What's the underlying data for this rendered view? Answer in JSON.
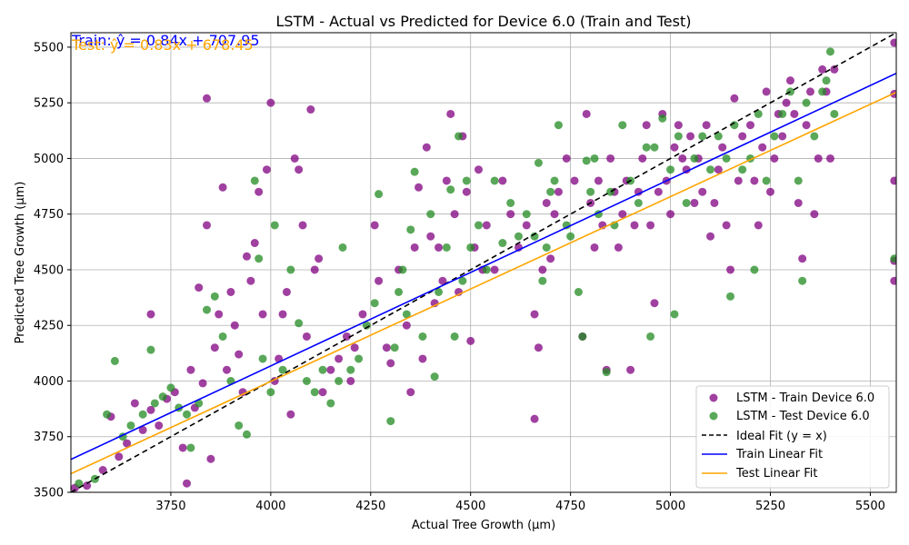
{
  "chart_data": {
    "type": "scatter",
    "title": "LSTM - Actual vs Predicted for Device 6.0 (Train and Test)",
    "xlabel": "Actual Tree Growth (µm)",
    "ylabel": "Predicted Tree Growth (µm)",
    "xlim": [
      3500,
      5565
    ],
    "ylim": [
      3500,
      5565
    ],
    "xticks": [
      "3750",
      "4000",
      "4250",
      "4500",
      "4750",
      "5000",
      "5250",
      "5500"
    ],
    "yticks": [
      "3500",
      "3750",
      "4000",
      "4250",
      "4500",
      "4750",
      "5000",
      "5250",
      "5500"
    ],
    "grid": true,
    "legend_position": "lower-right",
    "series": [
      {
        "name": "LSTM - Train Device 6.0",
        "kind": "scatter",
        "color": "#800080",
        "points": [
          [
            3510,
            3520
          ],
          [
            3540,
            3530
          ],
          [
            3580,
            3600
          ],
          [
            3600,
            3840
          ],
          [
            3620,
            3660
          ],
          [
            3640,
            3720
          ],
          [
            3660,
            3900
          ],
          [
            3680,
            3780
          ],
          [
            3700,
            3870
          ],
          [
            3700,
            4300
          ],
          [
            3720,
            3800
          ],
          [
            3740,
            3920
          ],
          [
            3760,
            3950
          ],
          [
            3780,
            3700
          ],
          [
            3790,
            3540
          ],
          [
            3800,
            4050
          ],
          [
            3810,
            3880
          ],
          [
            3820,
            4420
          ],
          [
            3830,
            3990
          ],
          [
            3840,
            5270
          ],
          [
            3840,
            4700
          ],
          [
            3850,
            3650
          ],
          [
            3860,
            4150
          ],
          [
            3870,
            4300
          ],
          [
            3880,
            4870
          ],
          [
            3890,
            4050
          ],
          [
            3900,
            4400
          ],
          [
            3910,
            4250
          ],
          [
            3920,
            4120
          ],
          [
            3930,
            3950
          ],
          [
            3940,
            4560
          ],
          [
            3950,
            4450
          ],
          [
            3960,
            4620
          ],
          [
            3970,
            4850
          ],
          [
            3980,
            4300
          ],
          [
            3990,
            4950
          ],
          [
            4000,
            5250
          ],
          [
            4010,
            4000
          ],
          [
            4020,
            4100
          ],
          [
            4030,
            4300
          ],
          [
            4040,
            4400
          ],
          [
            4050,
            3850
          ],
          [
            4060,
            5000
          ],
          [
            4070,
            4950
          ],
          [
            4080,
            4700
          ],
          [
            4090,
            4200
          ],
          [
            4100,
            5220
          ],
          [
            4110,
            4500
          ],
          [
            4120,
            4550
          ],
          [
            4130,
            3950
          ],
          [
            4150,
            4050
          ],
          [
            4170,
            4100
          ],
          [
            4190,
            4200
          ],
          [
            4200,
            4000
          ],
          [
            4210,
            4150
          ],
          [
            4230,
            4300
          ],
          [
            4260,
            4700
          ],
          [
            4270,
            4450
          ],
          [
            4290,
            4150
          ],
          [
            4300,
            4080
          ],
          [
            4320,
            4500
          ],
          [
            4340,
            4250
          ],
          [
            4350,
            3950
          ],
          [
            4360,
            4600
          ],
          [
            4370,
            4870
          ],
          [
            4380,
            4100
          ],
          [
            4390,
            5050
          ],
          [
            4400,
            4650
          ],
          [
            4410,
            4350
          ],
          [
            4420,
            4600
          ],
          [
            4430,
            4450
          ],
          [
            4440,
            4900
          ],
          [
            4450,
            5200
          ],
          [
            4460,
            4750
          ],
          [
            4470,
            4400
          ],
          [
            4480,
            5100
          ],
          [
            4490,
            4850
          ],
          [
            4500,
            4180
          ],
          [
            4510,
            4600
          ],
          [
            4520,
            4950
          ],
          [
            4530,
            4500
          ],
          [
            4540,
            4700
          ],
          [
            4560,
            4500
          ],
          [
            4580,
            4900
          ],
          [
            4600,
            4750
          ],
          [
            4620,
            4600
          ],
          [
            4640,
            4700
          ],
          [
            4660,
            3830
          ],
          [
            4660,
            4300
          ],
          [
            4670,
            4150
          ],
          [
            4680,
            4500
          ],
          [
            4690,
            4800
          ],
          [
            4700,
            4550
          ],
          [
            4710,
            4750
          ],
          [
            4720,
            4850
          ],
          [
            4740,
            5000
          ],
          [
            4760,
            4900
          ],
          [
            4780,
            4200
          ],
          [
            4790,
            5200
          ],
          [
            4800,
            4800
          ],
          [
            4810,
            4600
          ],
          [
            4820,
            4900
          ],
          [
            4830,
            4700
          ],
          [
            4840,
            4050
          ],
          [
            4850,
            5000
          ],
          [
            4860,
            4850
          ],
          [
            4870,
            4600
          ],
          [
            4880,
            4750
          ],
          [
            4890,
            4900
          ],
          [
            4900,
            4050
          ],
          [
            4910,
            4700
          ],
          [
            4920,
            4850
          ],
          [
            4930,
            5000
          ],
          [
            4940,
            5150
          ],
          [
            4950,
            4700
          ],
          [
            4960,
            4350
          ],
          [
            4970,
            4850
          ],
          [
            4980,
            5200
          ],
          [
            4990,
            4900
          ],
          [
            5000,
            4750
          ],
          [
            5010,
            5050
          ],
          [
            5020,
            5150
          ],
          [
            5030,
            5000
          ],
          [
            5040,
            4950
          ],
          [
            5050,
            5100
          ],
          [
            5060,
            4800
          ],
          [
            5070,
            5000
          ],
          [
            5080,
            4850
          ],
          [
            5090,
            5150
          ],
          [
            5100,
            4650
          ],
          [
            5110,
            4800
          ],
          [
            5120,
            4950
          ],
          [
            5130,
            5050
          ],
          [
            5140,
            4700
          ],
          [
            5150,
            4500
          ],
          [
            5160,
            5270
          ],
          [
            5170,
            4900
          ],
          [
            5180,
            5100
          ],
          [
            5200,
            5150
          ],
          [
            5210,
            4900
          ],
          [
            5220,
            4700
          ],
          [
            5230,
            5050
          ],
          [
            5240,
            5300
          ],
          [
            5250,
            4850
          ],
          [
            5260,
            5000
          ],
          [
            5270,
            5200
          ],
          [
            5280,
            5100
          ],
          [
            5290,
            5250
          ],
          [
            5300,
            5350
          ],
          [
            5310,
            5200
          ],
          [
            5320,
            4800
          ],
          [
            5330,
            4550
          ],
          [
            5340,
            5150
          ],
          [
            5350,
            5300
          ],
          [
            5360,
            4750
          ],
          [
            5370,
            5000
          ],
          [
            5380,
            5400
          ],
          [
            5390,
            5300
          ],
          [
            5400,
            5000
          ],
          [
            5410,
            5400
          ],
          [
            5560,
            5520
          ],
          [
            5560,
            4540
          ],
          [
            5560,
            4900
          ],
          [
            5560,
            5290
          ],
          [
            5560,
            4450
          ]
        ]
      },
      {
        "name": "LSTM - Test Device 6.0",
        "kind": "scatter",
        "color": "#228B22",
        "points": [
          [
            3520,
            3540
          ],
          [
            3560,
            3560
          ],
          [
            3590,
            3850
          ],
          [
            3610,
            4090
          ],
          [
            3630,
            3750
          ],
          [
            3650,
            3800
          ],
          [
            3680,
            3850
          ],
          [
            3700,
            4140
          ],
          [
            3710,
            3900
          ],
          [
            3730,
            3930
          ],
          [
            3750,
            3970
          ],
          [
            3770,
            3880
          ],
          [
            3790,
            3850
          ],
          [
            3800,
            3700
          ],
          [
            3820,
            3900
          ],
          [
            3840,
            4320
          ],
          [
            3860,
            4380
          ],
          [
            3880,
            4200
          ],
          [
            3900,
            4000
          ],
          [
            3920,
            3800
          ],
          [
            3940,
            3760
          ],
          [
            3960,
            4900
          ],
          [
            3970,
            4550
          ],
          [
            3980,
            4100
          ],
          [
            4000,
            3950
          ],
          [
            4010,
            4700
          ],
          [
            4030,
            4050
          ],
          [
            4050,
            4500
          ],
          [
            4070,
            4260
          ],
          [
            4090,
            4000
          ],
          [
            4110,
            3950
          ],
          [
            4130,
            4050
          ],
          [
            4150,
            3900
          ],
          [
            4170,
            4000
          ],
          [
            4180,
            4600
          ],
          [
            4200,
            4050
          ],
          [
            4220,
            4100
          ],
          [
            4240,
            4250
          ],
          [
            4260,
            4350
          ],
          [
            4270,
            4840
          ],
          [
            4300,
            3820
          ],
          [
            4310,
            4150
          ],
          [
            4320,
            4400
          ],
          [
            4330,
            4500
          ],
          [
            4340,
            4300
          ],
          [
            4350,
            4680
          ],
          [
            4360,
            4940
          ],
          [
            4380,
            4200
          ],
          [
            4400,
            4750
          ],
          [
            4410,
            4020
          ],
          [
            4420,
            4400
          ],
          [
            4440,
            4600
          ],
          [
            4450,
            4860
          ],
          [
            4460,
            4200
          ],
          [
            4470,
            5100
          ],
          [
            4480,
            4450
          ],
          [
            4490,
            4900
          ],
          [
            4500,
            4600
          ],
          [
            4520,
            4700
          ],
          [
            4540,
            4500
          ],
          [
            4560,
            4900
          ],
          [
            4580,
            4620
          ],
          [
            4600,
            4800
          ],
          [
            4620,
            4650
          ],
          [
            4640,
            4750
          ],
          [
            4660,
            4650
          ],
          [
            4670,
            4980
          ],
          [
            4680,
            4450
          ],
          [
            4690,
            4600
          ],
          [
            4700,
            4850
          ],
          [
            4710,
            4900
          ],
          [
            4720,
            5150
          ],
          [
            4740,
            4700
          ],
          [
            4750,
            4650
          ],
          [
            4770,
            4400
          ],
          [
            4780,
            4200
          ],
          [
            4790,
            4990
          ],
          [
            4800,
            4850
          ],
          [
            4810,
            5000
          ],
          [
            4820,
            4750
          ],
          [
            4840,
            4040
          ],
          [
            4850,
            4850
          ],
          [
            4860,
            4700
          ],
          [
            4880,
            5150
          ],
          [
            4900,
            4900
          ],
          [
            4920,
            4800
          ],
          [
            4940,
            5050
          ],
          [
            4950,
            4200
          ],
          [
            4960,
            5050
          ],
          [
            4980,
            5180
          ],
          [
            5000,
            4950
          ],
          [
            5010,
            4300
          ],
          [
            5020,
            5100
          ],
          [
            5040,
            4800
          ],
          [
            5060,
            5000
          ],
          [
            5080,
            5100
          ],
          [
            5100,
            4950
          ],
          [
            5120,
            5100
          ],
          [
            5140,
            5000
          ],
          [
            5150,
            4380
          ],
          [
            5160,
            5150
          ],
          [
            5180,
            4950
          ],
          [
            5200,
            5000
          ],
          [
            5210,
            4500
          ],
          [
            5220,
            5200
          ],
          [
            5240,
            4900
          ],
          [
            5260,
            5100
          ],
          [
            5280,
            5200
          ],
          [
            5300,
            5300
          ],
          [
            5320,
            4900
          ],
          [
            5330,
            4450
          ],
          [
            5340,
            5250
          ],
          [
            5360,
            5100
          ],
          [
            5380,
            5300
          ],
          [
            5390,
            5350
          ],
          [
            5400,
            5480
          ],
          [
            5410,
            5200
          ],
          [
            5560,
            4550
          ]
        ]
      }
    ],
    "lines": [
      {
        "name": "Ideal Fit (y = x)",
        "slope": 1,
        "intercept": 0,
        "color": "#000000",
        "dashed": true
      },
      {
        "name": "Train Linear Fit",
        "slope": 0.84,
        "intercept": 707.95,
        "color": "#0000ff",
        "dashed": false
      },
      {
        "name": "Test Linear Fit",
        "slope": 0.83,
        "intercept": 678.45,
        "color": "#ffa500",
        "dashed": false
      }
    ],
    "annotations": [
      {
        "text": "Train: ŷ = 0.84x + 707.95",
        "color": "#0000ff"
      },
      {
        "text": "Test: ŷ = 0.83x + 678.45",
        "color": "#ffa500"
      }
    ]
  }
}
